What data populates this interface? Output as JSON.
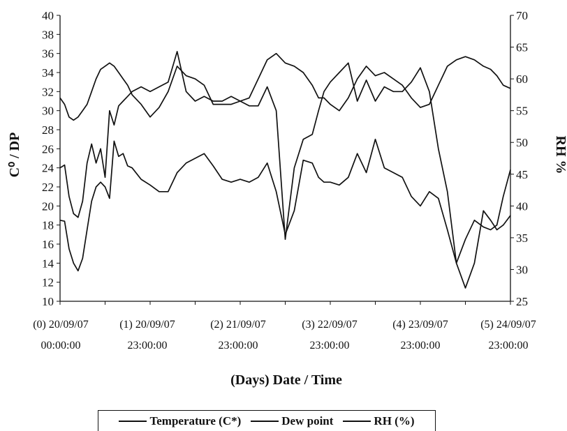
{
  "chart_data": {
    "type": "line",
    "xlabel": "(Days)  Date / Time",
    "ylabel_left": "C⁰  /  DP",
    "ylabel_right": "RH  %",
    "ylim_left": [
      10,
      40
    ],
    "ylim_right": [
      25,
      70
    ],
    "xlim": [
      0,
      5
    ],
    "yticks_left": [
      "10",
      "12",
      "14",
      "16",
      "18",
      "20",
      "22",
      "24",
      "26",
      "28",
      "30",
      "32",
      "34",
      "36",
      "38",
      "40"
    ],
    "yticks_right": [
      "25",
      "30",
      "35",
      "40",
      "45",
      "50",
      "55",
      "60",
      "65",
      "70"
    ],
    "xticks": [
      {
        "x": 0,
        "line1": "(0) 20/09/07",
        "line2": "00:00:00"
      },
      {
        "x": 1,
        "line1": "(1) 20/09/07",
        "line2": "23:00:00"
      },
      {
        "x": 2,
        "line1": "(2) 21/09/07",
        "line2": "23:00:00"
      },
      {
        "x": 3,
        "line1": "(3) 22/09/07",
        "line2": "23:00:00"
      },
      {
        "x": 4,
        "line1": "(4) 23/09/07",
        "line2": "23:00:00"
      },
      {
        "x": 5,
        "line1": "(5) 24/09/07",
        "line2": "23:00:00"
      }
    ],
    "series": [
      {
        "name": "Temperature (C*)",
        "axis": "left",
        "x": [
          0,
          0.05,
          0.1,
          0.15,
          0.2,
          0.25,
          0.3,
          0.35,
          0.4,
          0.45,
          0.5,
          0.55,
          0.6,
          0.65,
          0.7,
          0.75,
          0.8,
          0.9,
          1.0,
          1.1,
          1.2,
          1.3,
          1.4,
          1.5,
          1.6,
          1.7,
          1.8,
          1.9,
          2.0,
          2.1,
          2.2,
          2.3,
          2.4,
          2.5,
          2.6,
          2.7,
          2.8,
          2.87,
          2.93,
          3.0,
          3.1,
          3.2,
          3.3,
          3.4,
          3.5,
          3.6,
          3.7,
          3.8,
          3.9,
          4.0,
          4.1,
          4.2,
          4.3,
          4.4,
          4.5,
          4.6,
          4.7,
          4.78,
          4.85,
          4.92,
          5.0
        ],
        "values": [
          18.5,
          18.4,
          15.5,
          14.0,
          13.2,
          14.5,
          17.5,
          20.5,
          22.0,
          22.5,
          22.0,
          20.8,
          26.8,
          25.2,
          25.5,
          24.2,
          24.0,
          22.8,
          22.2,
          21.5,
          21.5,
          23.5,
          24.5,
          25.0,
          25.5,
          24.2,
          22.8,
          22.5,
          22.8,
          22.5,
          23.0,
          24.5,
          21.5,
          17.0,
          19.5,
          24.8,
          24.5,
          23.0,
          22.5,
          22.5,
          22.2,
          23.0,
          25.5,
          23.5,
          27.0,
          24.0,
          23.5,
          23.0,
          21.0,
          20.0,
          21.5,
          20.8,
          17.5,
          14.0,
          11.4,
          14.0,
          19.5,
          18.5,
          17.5,
          18.0,
          19.0
        ]
      },
      {
        "name": "Dew point",
        "axis": "left",
        "x": [
          0,
          0.05,
          0.1,
          0.15,
          0.2,
          0.25,
          0.3,
          0.35,
          0.4,
          0.45,
          0.5,
          0.55,
          0.6,
          0.65,
          0.7,
          0.75,
          0.8,
          0.9,
          1.0,
          1.1,
          1.2,
          1.3,
          1.4,
          1.5,
          1.6,
          1.7,
          1.8,
          1.9,
          2.0,
          2.1,
          2.2,
          2.3,
          2.4,
          2.5,
          2.6,
          2.7,
          2.8,
          2.87,
          2.93,
          3.0,
          3.1,
          3.2,
          3.3,
          3.4,
          3.5,
          3.6,
          3.7,
          3.8,
          3.9,
          4.0,
          4.1,
          4.2,
          4.3,
          4.4,
          4.5,
          4.6,
          4.7,
          4.78,
          4.85,
          4.92,
          5.0
        ],
        "values": [
          24.0,
          24.3,
          21.0,
          19.2,
          18.8,
          20.5,
          24.5,
          26.5,
          24.5,
          26.0,
          23.0,
          30.0,
          28.5,
          30.5,
          31.0,
          31.5,
          32.0,
          32.5,
          32.0,
          32.5,
          33.0,
          36.2,
          32.0,
          31.0,
          31.5,
          31.0,
          31.0,
          31.5,
          31.0,
          30.5,
          30.5,
          32.5,
          30.0,
          16.5,
          24.0,
          27.0,
          27.5,
          30.0,
          32.0,
          33.0,
          34.0,
          35.0,
          31.0,
          33.2,
          31.0,
          32.5,
          32.0,
          32.0,
          33.0,
          34.5,
          32.0,
          26.0,
          21.5,
          14.0,
          16.5,
          18.5,
          17.8,
          17.5,
          18.0,
          21.0,
          23.8
        ]
      },
      {
        "name": "RH (%)",
        "axis": "right",
        "x": [
          0,
          0.05,
          0.1,
          0.15,
          0.2,
          0.25,
          0.3,
          0.35,
          0.4,
          0.45,
          0.5,
          0.55,
          0.6,
          0.65,
          0.7,
          0.75,
          0.8,
          0.9,
          1.0,
          1.1,
          1.2,
          1.3,
          1.4,
          1.5,
          1.6,
          1.7,
          1.8,
          1.9,
          2.0,
          2.1,
          2.2,
          2.3,
          2.4,
          2.5,
          2.6,
          2.7,
          2.8,
          2.87,
          2.93,
          3.0,
          3.1,
          3.2,
          3.3,
          3.4,
          3.5,
          3.6,
          3.7,
          3.8,
          3.9,
          4.0,
          4.1,
          4.2,
          4.3,
          4.4,
          4.5,
          4.6,
          4.7,
          4.78,
          4.85,
          4.92,
          5.0
        ],
        "values": [
          57.0,
          56.0,
          54.0,
          53.5,
          54.0,
          55.0,
          56.0,
          58.0,
          60.0,
          61.5,
          62.0,
          62.5,
          62.0,
          61.0,
          60.0,
          59.0,
          57.5,
          56.0,
          54.0,
          55.5,
          58.0,
          62.0,
          60.5,
          60.0,
          59.0,
          56.0,
          56.0,
          56.0,
          56.5,
          57.0,
          60.0,
          63.0,
          64.0,
          62.5,
          62.0,
          61.0,
          59.0,
          57.0,
          57.0,
          56.0,
          55.0,
          57.0,
          60.0,
          62.0,
          60.5,
          61.0,
          60.0,
          59.0,
          57.0,
          55.5,
          56.0,
          59.0,
          62.0,
          63.0,
          63.5,
          63.0,
          62.0,
          61.5,
          60.5,
          59.0,
          58.5
        ]
      }
    ]
  },
  "legend": {
    "temperature_label": "Temperature (C*)",
    "dewpoint_label": "Dew point",
    "rh_label": "RH (%)"
  }
}
